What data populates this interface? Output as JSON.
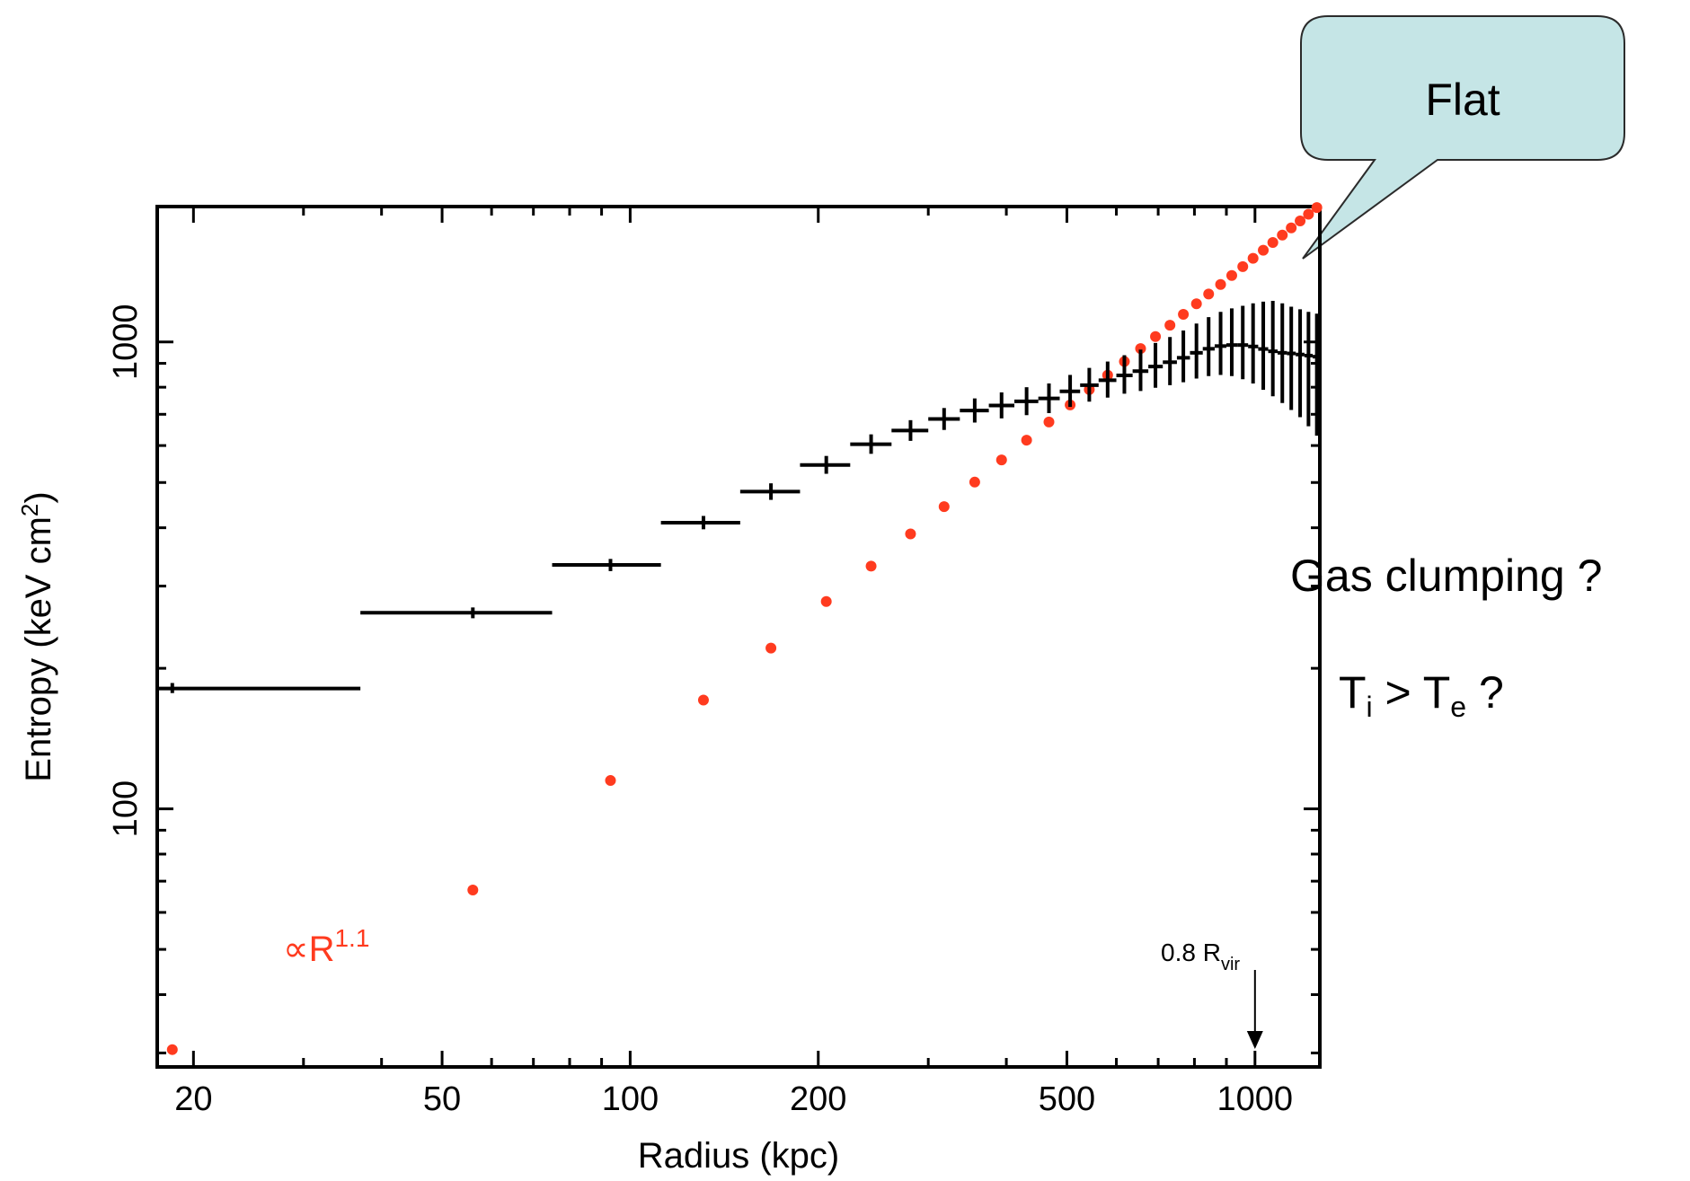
{
  "chart_data": {
    "type": "scatter",
    "title": "",
    "xlabel": "Radius (kpc)",
    "ylabel_main": "Entropy (keV cm",
    "ylabel_sup": "2",
    "ylabel_end": ")",
    "x_scale": "log",
    "y_scale": "log",
    "xlim": [
      17.5,
      1270
    ],
    "ylim": [
      28,
      1950
    ],
    "x_ticks_major": [
      20,
      50,
      100,
      200,
      500,
      1000
    ],
    "x_tick_labels": [
      "20",
      "50",
      "100",
      "200",
      "500",
      "1000"
    ],
    "y_ticks_major": [
      100,
      1000
    ],
    "y_tick_labels": [
      "100",
      "1000"
    ],
    "grid": false,
    "series": [
      {
        "color": "#000000",
        "marker": "errorbar-cross",
        "points": [
          {
            "x": 18.5,
            "xlo": 17.5,
            "xhi": 37,
            "y": 181,
            "ylo": 177,
            "yhi": 186
          },
          {
            "x": 56,
            "xlo": 37,
            "xhi": 75,
            "y": 263,
            "ylo": 256,
            "yhi": 270
          },
          {
            "x": 93,
            "xlo": 75,
            "xhi": 112,
            "y": 333,
            "ylo": 323,
            "yhi": 343
          },
          {
            "x": 131,
            "xlo": 112,
            "xhi": 150,
            "y": 410,
            "ylo": 397,
            "yhi": 424
          },
          {
            "x": 168,
            "xlo": 150,
            "xhi": 187,
            "y": 478,
            "ylo": 459,
            "yhi": 498
          },
          {
            "x": 206,
            "xlo": 187,
            "xhi": 225,
            "y": 545,
            "ylo": 522,
            "yhi": 570
          },
          {
            "x": 243,
            "xlo": 225,
            "xhi": 262,
            "y": 604,
            "ylo": 576,
            "yhi": 634
          },
          {
            "x": 281,
            "xlo": 262,
            "xhi": 300,
            "y": 646,
            "ylo": 614,
            "yhi": 680
          },
          {
            "x": 318,
            "xlo": 300,
            "xhi": 337,
            "y": 684,
            "ylo": 648,
            "yhi": 722
          },
          {
            "x": 356,
            "xlo": 337,
            "xhi": 375,
            "y": 713,
            "ylo": 672,
            "yhi": 757
          },
          {
            "x": 393,
            "xlo": 375,
            "xhi": 412,
            "y": 731,
            "ylo": 686,
            "yhi": 780
          },
          {
            "x": 431,
            "xlo": 412,
            "xhi": 450,
            "y": 746,
            "ylo": 697,
            "yhi": 800
          },
          {
            "x": 468,
            "xlo": 450,
            "xhi": 487,
            "y": 757,
            "ylo": 704,
            "yhi": 815
          },
          {
            "x": 506,
            "xlo": 487,
            "xhi": 525,
            "y": 784,
            "ylo": 726,
            "yhi": 850
          },
          {
            "x": 543,
            "xlo": 525,
            "xhi": 562,
            "y": 808,
            "ylo": 745,
            "yhi": 880
          },
          {
            "x": 581,
            "xlo": 562,
            "xhi": 600,
            "y": 828,
            "ylo": 760,
            "yhi": 908
          },
          {
            "x": 618,
            "xlo": 600,
            "xhi": 637,
            "y": 848,
            "ylo": 775,
            "yhi": 937
          },
          {
            "x": 656,
            "xlo": 637,
            "xhi": 675,
            "y": 866,
            "ylo": 785,
            "yhi": 963
          },
          {
            "x": 693,
            "xlo": 675,
            "xhi": 712,
            "y": 886,
            "ylo": 798,
            "yhi": 995
          },
          {
            "x": 731,
            "xlo": 712,
            "xhi": 750,
            "y": 905,
            "ylo": 808,
            "yhi": 1025
          },
          {
            "x": 768,
            "xlo": 750,
            "xhi": 787,
            "y": 925,
            "ylo": 820,
            "yhi": 1058
          },
          {
            "x": 806,
            "xlo": 787,
            "xhi": 825,
            "y": 948,
            "ylo": 835,
            "yhi": 1095
          },
          {
            "x": 843,
            "xlo": 825,
            "xhi": 862,
            "y": 967,
            "ylo": 845,
            "yhi": 1130
          },
          {
            "x": 881,
            "xlo": 862,
            "xhi": 900,
            "y": 980,
            "ylo": 850,
            "yhi": 1160
          },
          {
            "x": 918,
            "xlo": 900,
            "xhi": 937,
            "y": 985,
            "ylo": 845,
            "yhi": 1180
          },
          {
            "x": 956,
            "xlo": 937,
            "xhi": 975,
            "y": 985,
            "ylo": 832,
            "yhi": 1195
          },
          {
            "x": 993,
            "xlo": 975,
            "xhi": 1012,
            "y": 978,
            "ylo": 815,
            "yhi": 1210
          },
          {
            "x": 1031,
            "xlo": 1012,
            "xhi": 1050,
            "y": 966,
            "ylo": 790,
            "yhi": 1220
          },
          {
            "x": 1068,
            "xlo": 1050,
            "xhi": 1087,
            "y": 955,
            "ylo": 765,
            "yhi": 1225
          },
          {
            "x": 1106,
            "xlo": 1087,
            "xhi": 1125,
            "y": 948,
            "ylo": 740,
            "yhi": 1210
          },
          {
            "x": 1143,
            "xlo": 1125,
            "xhi": 1162,
            "y": 945,
            "ylo": 715,
            "yhi": 1190
          },
          {
            "x": 1181,
            "xlo": 1162,
            "xhi": 1200,
            "y": 940,
            "ylo": 690,
            "yhi": 1175
          },
          {
            "x": 1218,
            "xlo": 1200,
            "xhi": 1237,
            "y": 935,
            "ylo": 660,
            "yhi": 1160
          },
          {
            "x": 1256,
            "xlo": 1237,
            "xhi": 1270,
            "y": 930,
            "ylo": 630,
            "yhi": 1150
          }
        ]
      },
      {
        "color": "#ff3b1f",
        "marker": "dot",
        "points": [
          [
            18.5,
            30.5
          ],
          [
            56,
            67
          ],
          [
            93,
            115
          ],
          [
            131,
            171
          ],
          [
            168,
            221
          ],
          [
            206,
            278
          ],
          [
            243,
            331
          ],
          [
            281,
            388
          ],
          [
            318,
            444
          ],
          [
            356,
            501
          ],
          [
            393,
            559
          ],
          [
            431,
            616
          ],
          [
            468,
            674
          ],
          [
            506,
            733
          ],
          [
            543,
            791
          ],
          [
            581,
            849
          ],
          [
            618,
            908
          ],
          [
            656,
            968
          ],
          [
            693,
            1027
          ],
          [
            731,
            1086
          ],
          [
            768,
            1146
          ],
          [
            806,
            1207
          ],
          [
            843,
            1267
          ],
          [
            881,
            1328
          ],
          [
            918,
            1388
          ],
          [
            956,
            1450
          ],
          [
            993,
            1511
          ],
          [
            1031,
            1572
          ],
          [
            1068,
            1633
          ],
          [
            1106,
            1694
          ],
          [
            1143,
            1755
          ],
          [
            1181,
            1817
          ],
          [
            1218,
            1878
          ],
          [
            1256,
            1940
          ]
        ]
      }
    ],
    "annotations": {
      "fit_prefix": "∝R",
      "fit_sup": "1.1",
      "fit_color": "#ff3b1f",
      "rvir_label": "0.8 R",
      "rvir_sub": "vir",
      "rvir_x": 1000,
      "callout_text": "Flat",
      "callout_fill": "#c5e5e6",
      "gas_text": "Gas clumping ?",
      "ti_T": "T",
      "ti_sub": "i",
      "ti_mid": " > T",
      "te_sub": "e",
      "te_end": " ?"
    }
  }
}
